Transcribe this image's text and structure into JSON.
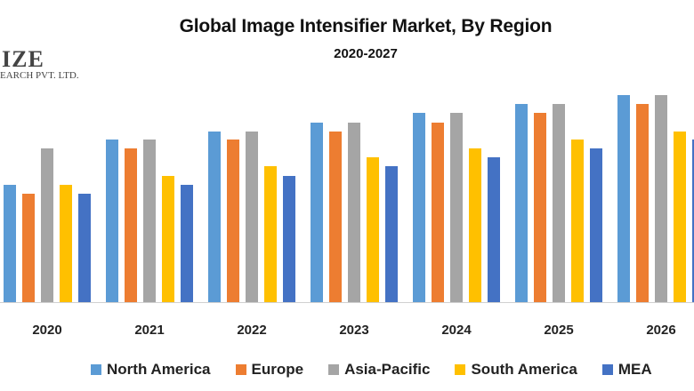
{
  "logo": {
    "main": "IZE",
    "sub": "EARCH PVT. LTD."
  },
  "chart_data": {
    "type": "bar",
    "title": "Global Image Intensifier Market, By Region",
    "subtitle": "2020-2027",
    "xlabel": "",
    "ylabel": "",
    "grid": false,
    "legend_position": "bottom",
    "categories": [
      "2020",
      "2021",
      "2022",
      "2023",
      "2024",
      "2025",
      "2026"
    ],
    "ylim": [
      0,
      240
    ],
    "series": [
      {
        "name": "North America",
        "color": "#5B9BD5",
        "values": [
          132,
          183,
          192,
          202,
          213,
          223,
          233
        ]
      },
      {
        "name": "Europe",
        "color": "#ED7D31",
        "values": [
          122,
          173,
          183,
          192,
          202,
          213,
          223
        ]
      },
      {
        "name": "Asia-Pacific",
        "color": "#A5A5A5",
        "values": [
          173,
          183,
          192,
          202,
          213,
          223,
          233
        ]
      },
      {
        "name": "South America",
        "color": "#FFC000",
        "values": [
          132,
          142,
          153,
          163,
          173,
          183,
          192
        ]
      },
      {
        "name": "MEA",
        "color": "#4472C4",
        "values": [
          122,
          132,
          142,
          153,
          163,
          173,
          183
        ]
      }
    ]
  }
}
